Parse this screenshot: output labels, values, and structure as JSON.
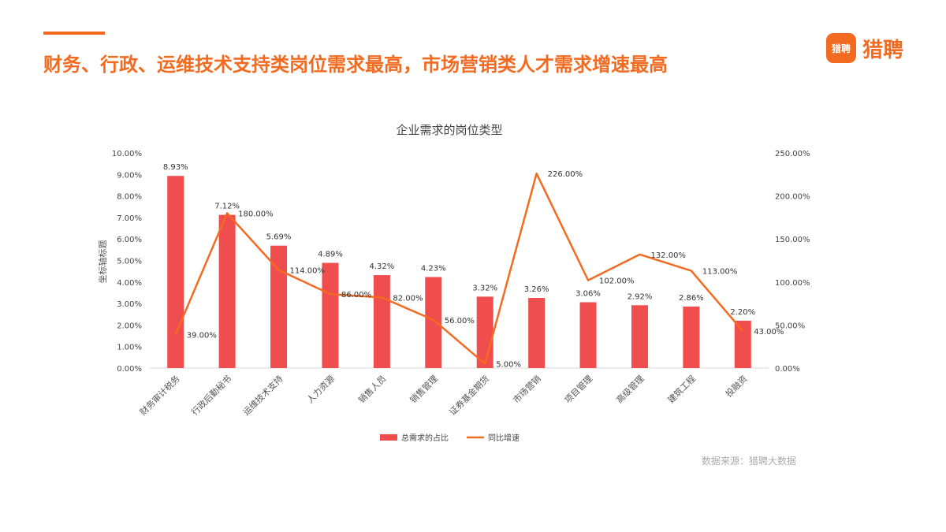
{
  "header": {
    "headline": "财务、行政、运维技术支持类岗位需求最高，市场营销类人才需求增速最高",
    "logo_badge": "猎聘",
    "logo_text": "猎聘"
  },
  "footer": {
    "source_label": "数据来源：",
    "source_value": "猎聘大数据"
  },
  "colors": {
    "accent": "#f26b21",
    "bar": "#f04e4e",
    "line": "#f26b21"
  },
  "chart_data": {
    "type": "bar",
    "title": "企业需求的岗位类型",
    "ylabel": "坐标轴标题",
    "ylim": [
      0,
      10
    ],
    "y2lim": [
      0,
      250
    ],
    "yticks": [
      "0.00%",
      "1.00%",
      "2.00%",
      "3.00%",
      "4.00%",
      "5.00%",
      "6.00%",
      "7.00%",
      "8.00%",
      "9.00%",
      "10.00%"
    ],
    "y2ticks": [
      "0.00%",
      "50.00%",
      "100.00%",
      "150.00%",
      "200.00%",
      "250.00%"
    ],
    "categories": [
      "财务审计税务",
      "行政后勤秘书",
      "运维技术支持",
      "人力资源",
      "销售人员",
      "销售管理",
      "证券基金期货",
      "市场营销",
      "项目管理",
      "高级管理",
      "建筑工程",
      "投融资"
    ],
    "series": [
      {
        "name": "总需求的占比",
        "type": "bar",
        "axis": "left",
        "values": [
          8.93,
          7.12,
          5.69,
          4.89,
          4.32,
          4.23,
          3.32,
          3.26,
          3.06,
          2.92,
          2.86,
          2.2
        ],
        "labels": [
          "8.93%",
          "7.12%",
          "5.69%",
          "4.89%",
          "4.32%",
          "4.23%",
          "3.32%",
          "3.26%",
          "3.06%",
          "2.92%",
          "2.86%",
          "2.20%"
        ]
      },
      {
        "name": "同比增速",
        "type": "line",
        "axis": "right",
        "values": [
          39,
          180,
          114,
          86,
          82,
          56,
          5,
          226,
          102,
          132,
          113,
          43
        ],
        "labels": [
          "39.00%",
          "180.00%",
          "114.00%",
          "86.00%",
          "82.00%",
          "56.00%",
          "5.00%",
          "226.00%",
          "102.00%",
          "132.00%",
          "113.00%",
          "43.00%"
        ]
      }
    ],
    "legend": "bottom",
    "grid": false
  }
}
